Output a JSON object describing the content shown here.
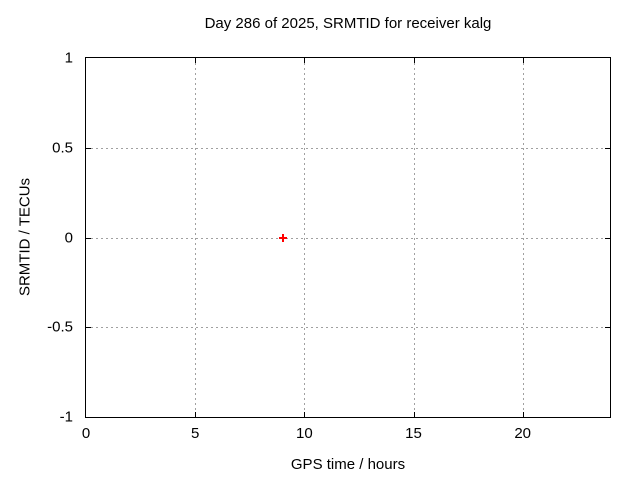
{
  "colors": {
    "background": "#ffffff",
    "axis": "#000000",
    "text": "#000000",
    "grid": "#a0a0a0",
    "marker_red": "#ff0000"
  },
  "chart_data": {
    "type": "scatter",
    "title": "Day 286 of 2025, SRMTID for receiver kalg",
    "xlabel": "GPS time / hours",
    "ylabel": "SRMTID / TECUs",
    "xlim": [
      0,
      24
    ],
    "ylim": [
      -1,
      1
    ],
    "xticks": [
      0,
      5,
      10,
      15,
      20
    ],
    "xtick_labels": [
      "0",
      "5",
      "10",
      "15",
      "20"
    ],
    "yticks": [
      -1,
      -0.5,
      0,
      0.5,
      1
    ],
    "ytick_labels": [
      "-1",
      "-0.5",
      "0",
      "0.5",
      "1"
    ],
    "grid": true,
    "legend": "none",
    "series": [
      {
        "name": "SRMTID",
        "marker": "plus",
        "color": "#ff0000",
        "points": [
          [
            9,
            0
          ]
        ]
      }
    ]
  }
}
